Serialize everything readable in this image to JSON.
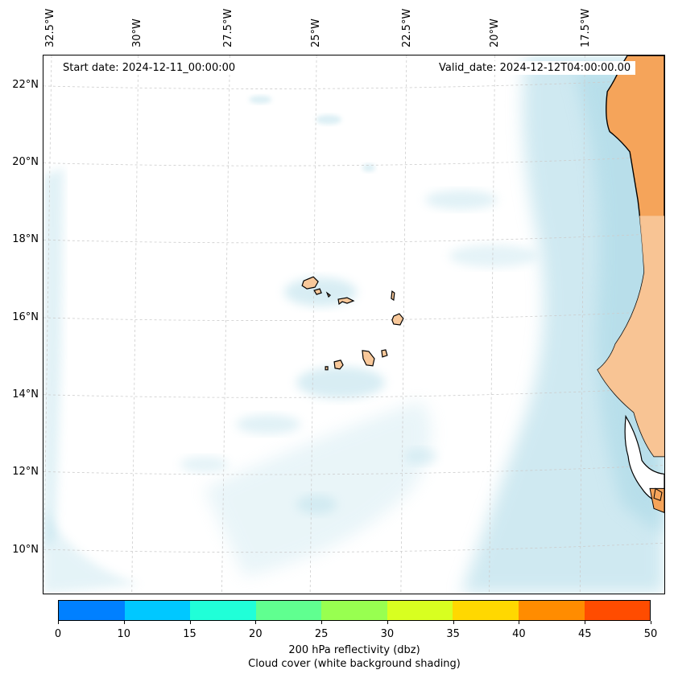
{
  "map": {
    "start_date": "Start date: 2024-12-11_00:00:00",
    "valid_date": "Valid_date: 2024-12-12T04:00:00.00",
    "longitude_labels": [
      "32.5°W",
      "30°W",
      "27.5°W",
      "25°W",
      "22.5°W",
      "20°W",
      "17.5°W"
    ],
    "latitude_labels": [
      "22°N",
      "20°N",
      "18°N",
      "16°N",
      "14°N",
      "12°N",
      "10°N"
    ],
    "colors": {
      "land": "#f5a45a",
      "land_light": "#f8c89a",
      "cloud": "#a9d8e6",
      "coastline": "#000000"
    }
  },
  "colorbar": {
    "ticks": [
      "0",
      "10",
      "15",
      "20",
      "25",
      "30",
      "35",
      "40",
      "45",
      "50"
    ],
    "colors": [
      "#0080ff",
      "#00c8ff",
      "#20ffd8",
      "#60ff90",
      "#98ff50",
      "#d8ff20",
      "#ffd800",
      "#ff8c00",
      "#ff4c00"
    ],
    "label": "200 hPa reflectivity (dbz)",
    "sublabel": "Cloud cover (white background shading)"
  }
}
